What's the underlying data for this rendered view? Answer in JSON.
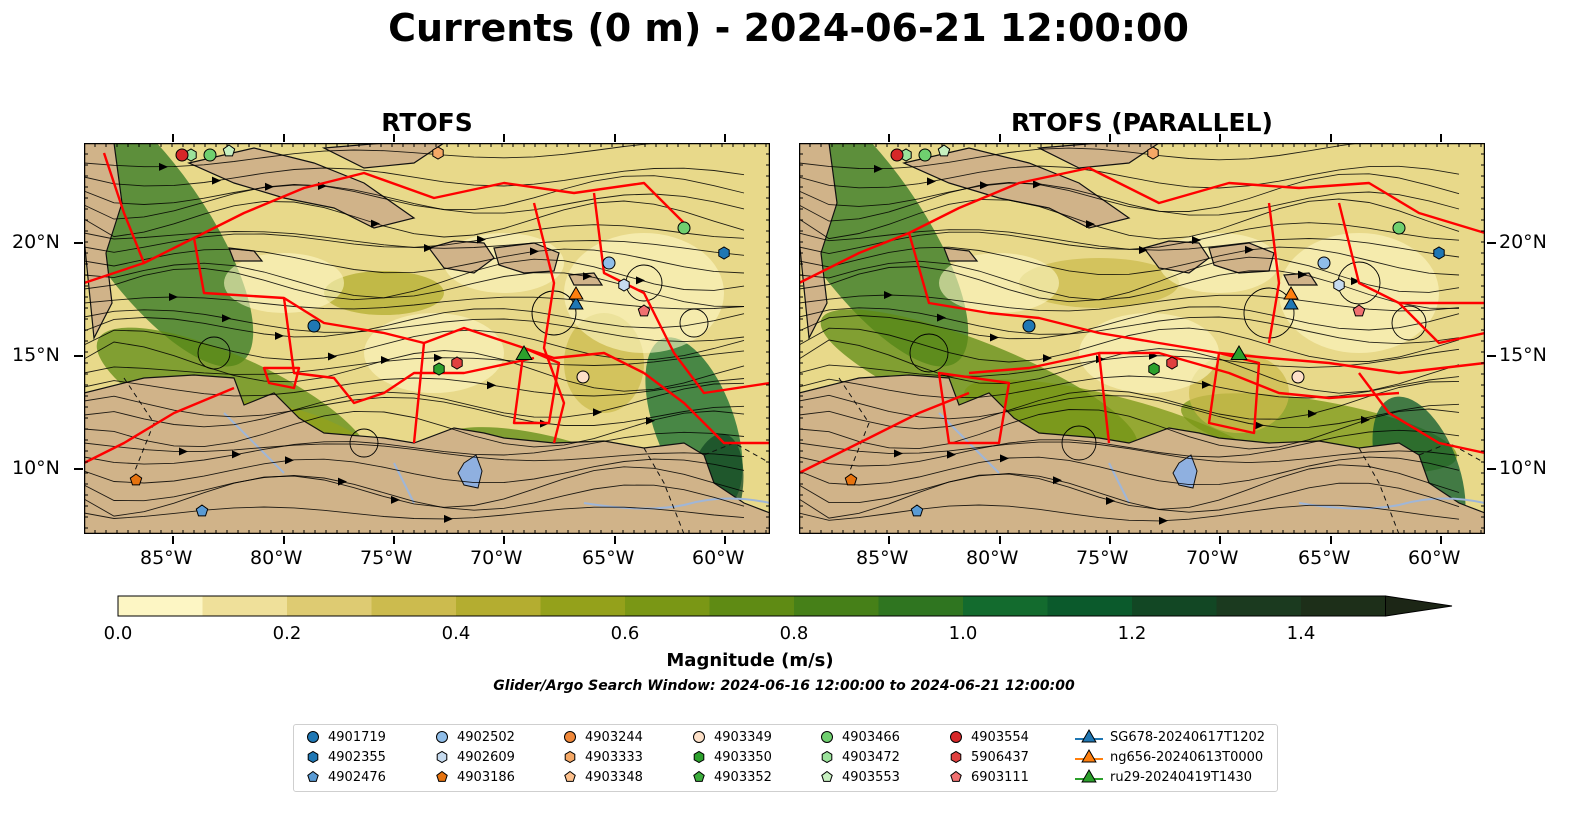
{
  "title": "Currents (0 m) - 2024-06-21 12:00:00",
  "panels": [
    {
      "id": "left",
      "title": "RTOFS"
    },
    {
      "id": "right",
      "title": "RTOFS (PARALLEL)"
    }
  ],
  "axes": {
    "lon_labels": [
      "85°W",
      "80°W",
      "75°W",
      "70°W",
      "65°W",
      "60°W"
    ],
    "lat_labels": [
      "20°N",
      "15°N",
      "10°N"
    ]
  },
  "colorbar": {
    "label": "Magnitude (m/s)",
    "ticks": [
      "0.0",
      "0.2",
      "0.4",
      "0.6",
      "0.8",
      "1.0",
      "1.2",
      "1.4"
    ],
    "colors": [
      "#fdf6c4",
      "#efe09a",
      "#decb72",
      "#ccbb4e",
      "#b4ad30",
      "#94a11b",
      "#7a9715",
      "#5f8b14",
      "#468018",
      "#2f7520",
      "#136b2e",
      "#0b5a2c",
      "#124724",
      "#1b3a1f",
      "#1d2f19",
      "#1c2616"
    ]
  },
  "search_window": "Glider/Argo Search Window: 2024-06-16 12:00:00 to 2024-06-21 12:00:00",
  "map_colors": {
    "land": "#d0b389",
    "ocean_base": "#e8d98a",
    "boundary": "#ff0000",
    "lake": "#8fb0e0",
    "river": "#9fb6d8"
  },
  "legend": [
    {
      "label": "4901719",
      "marker": "circle",
      "color": "#1f77b4"
    },
    {
      "label": "4902355",
      "marker": "hexagon",
      "color": "#1f77b4"
    },
    {
      "label": "4902476",
      "marker": "pentagon",
      "color": "#5a9bd4"
    },
    {
      "label": "4902502",
      "marker": "circle",
      "color": "#8fbde8"
    },
    {
      "label": "4902609",
      "marker": "hexagon",
      "color": "#c6dbef"
    },
    {
      "label": "4903186",
      "marker": "pentagon",
      "color": "#e6730f"
    },
    {
      "label": "4903244",
      "marker": "circle",
      "color": "#f0883a"
    },
    {
      "label": "4903333",
      "marker": "hexagon",
      "color": "#f5a866"
    },
    {
      "label": "4903348",
      "marker": "pentagon",
      "color": "#fdc08c"
    },
    {
      "label": "4903349",
      "marker": "circle",
      "color": "#fde0c8"
    },
    {
      "label": "4903350",
      "marker": "hexagon",
      "color": "#2ca02c"
    },
    {
      "label": "4903352",
      "marker": "pentagon",
      "color": "#3cad3c"
    },
    {
      "label": "4903466",
      "marker": "circle",
      "color": "#6fcf6f"
    },
    {
      "label": "4903472",
      "marker": "hexagon",
      "color": "#9be29b"
    },
    {
      "label": "4903553",
      "marker": "pentagon",
      "color": "#c7f0c0"
    },
    {
      "label": "4903554",
      "marker": "circle",
      "color": "#d62728"
    },
    {
      "label": "5906437",
      "marker": "hexagon",
      "color": "#e0403f"
    },
    {
      "label": "6903111",
      "marker": "pentagon",
      "color": "#f07070"
    },
    {
      "label": "SG678-20240617T1202",
      "marker": "triangle",
      "color": "#1f77b4"
    },
    {
      "label": "ng656-20240613T0000",
      "marker": "triangle",
      "color": "#ff7f0e"
    },
    {
      "label": "ru29-20240419T1430",
      "marker": "triangle",
      "color": "#2ca02c"
    }
  ]
}
